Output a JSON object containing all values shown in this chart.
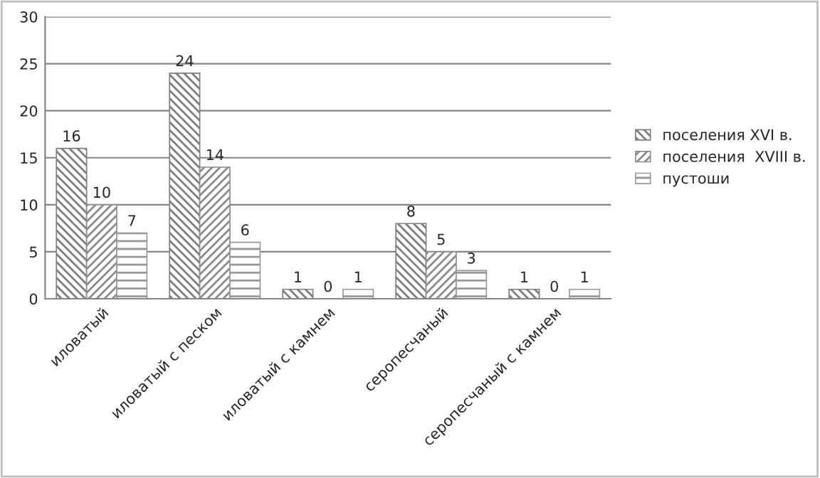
{
  "chart_data": {
    "type": "bar",
    "categories": [
      "иловатый",
      "иловатый с песком",
      "иловатый с камнем",
      "серопесчаный",
      "серопесчаный с камнем"
    ],
    "series": [
      {
        "name": "поселения XVI в.",
        "color": "#7f7f7f",
        "values": [
          16,
          24,
          1,
          8,
          1
        ]
      },
      {
        "name": "поселения  XVIII в.",
        "color": "#8c8c8c",
        "values": [
          10,
          14,
          0,
          5,
          0
        ]
      },
      {
        "name": "пустоши",
        "color": "#999999",
        "values": [
          7,
          6,
          1,
          3,
          1
        ]
      }
    ],
    "ylim": [
      0,
      30
    ],
    "yticks": [
      0,
      5,
      10,
      15,
      20,
      25,
      30
    ],
    "grid": "y",
    "legend": "right",
    "data_labels": true
  }
}
